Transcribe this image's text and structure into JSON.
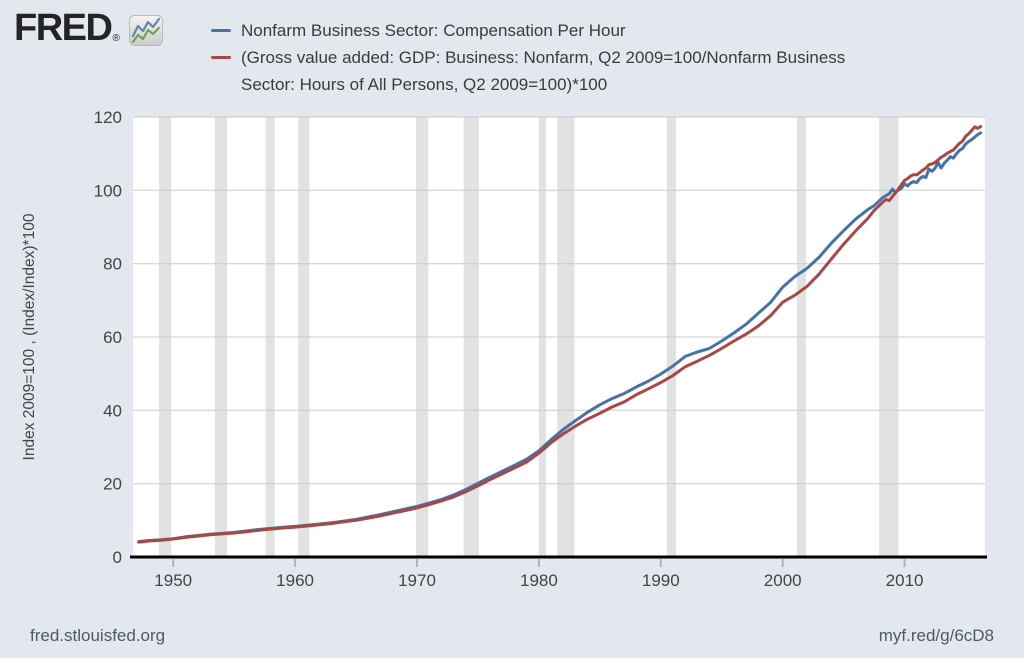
{
  "logo": {
    "text": "FRED",
    "registered": "®",
    "icon": "line-chart-icon"
  },
  "legend": {
    "items": [
      {
        "color": "#4572a7",
        "lines": [
          "Nonfarm Business Sector: Compensation Per Hour"
        ]
      },
      {
        "color": "#aa4643",
        "lines": [
          "(Gross value added: GDP: Business: Nonfarm, Q2 2009=100/Nonfarm Business",
          "Sector: Hours of All Persons, Q2 2009=100)*100"
        ]
      }
    ]
  },
  "footer": {
    "left": "fred.stlouisfed.org",
    "right": "myf.red/g/6cD8"
  },
  "colors": {
    "page_bg": "#e2e8ee",
    "plot_bg": "#ffffff",
    "grid": "#cbcbcb",
    "recession_band": "#e2e2e2",
    "axis_line": "#000000",
    "tick_mark": "#a3b8cb",
    "label_text": "#444444",
    "series_blue": "#4572a7",
    "series_red": "#aa4643"
  },
  "chart_data": {
    "type": "line",
    "title": "",
    "xlabel": "",
    "ylabel": "Index 2009=100 , (Index/Index)*100",
    "xlim": [
      1946.7,
      2016.6
    ],
    "ylim": [
      0,
      120
    ],
    "x_ticks": [
      1950,
      1960,
      1970,
      1980,
      1990,
      2000,
      2010
    ],
    "y_ticks": [
      0,
      20,
      40,
      60,
      80,
      100,
      120
    ],
    "grid": "horizontal",
    "legend_position": "top",
    "recession_bands": [
      [
        1948.83,
        1949.83
      ],
      [
        1953.42,
        1954.42
      ],
      [
        1957.58,
        1958.33
      ],
      [
        1960.25,
        1961.17
      ],
      [
        1969.92,
        1970.92
      ],
      [
        1973.83,
        1975.08
      ],
      [
        1980.0,
        1980.58
      ],
      [
        1981.5,
        1982.92
      ],
      [
        1990.5,
        1991.25
      ],
      [
        2001.17,
        2001.92
      ],
      [
        2007.92,
        2009.5
      ]
    ],
    "series": [
      {
        "name": "Nonfarm Business Sector: Compensation Per Hour",
        "color": "#4572a7",
        "points": [
          [
            1947.17,
            4.2
          ],
          [
            1948,
            4.5
          ],
          [
            1949,
            4.7
          ],
          [
            1950,
            5.0
          ],
          [
            1951,
            5.5
          ],
          [
            1952,
            5.85
          ],
          [
            1953,
            6.2
          ],
          [
            1954,
            6.45
          ],
          [
            1955,
            6.7
          ],
          [
            1956,
            7.1
          ],
          [
            1957,
            7.5
          ],
          [
            1958,
            7.8
          ],
          [
            1959,
            8.1
          ],
          [
            1960,
            8.35
          ],
          [
            1961,
            8.65
          ],
          [
            1962,
            9.0
          ],
          [
            1963,
            9.35
          ],
          [
            1964,
            9.8
          ],
          [
            1965,
            10.25
          ],
          [
            1966,
            10.9
          ],
          [
            1967,
            11.55
          ],
          [
            1968,
            12.3
          ],
          [
            1969,
            13.05
          ],
          [
            1970,
            13.8
          ],
          [
            1971,
            14.7
          ],
          [
            1972,
            15.7
          ],
          [
            1973,
            16.9
          ],
          [
            1974,
            18.4
          ],
          [
            1975,
            20.1
          ],
          [
            1976,
            21.8
          ],
          [
            1977,
            23.4
          ],
          [
            1978,
            25.0
          ],
          [
            1979,
            26.7
          ],
          [
            1980,
            29.0
          ],
          [
            1981,
            32.0
          ],
          [
            1982,
            34.8
          ],
          [
            1983,
            37.2
          ],
          [
            1984,
            39.5
          ],
          [
            1985,
            41.5
          ],
          [
            1986,
            43.2
          ],
          [
            1987,
            44.6
          ],
          [
            1988,
            46.4
          ],
          [
            1989,
            48.0
          ],
          [
            1990,
            49.9
          ],
          [
            1991,
            52.1
          ],
          [
            1992,
            54.7
          ],
          [
            1993,
            55.9
          ],
          [
            1994,
            56.9
          ],
          [
            1995,
            58.9
          ],
          [
            1996,
            61.1
          ],
          [
            1997,
            63.5
          ],
          [
            1998,
            66.5
          ],
          [
            1999,
            69.4
          ],
          [
            2000,
            73.6
          ],
          [
            2001,
            76.5
          ],
          [
            2002,
            78.7
          ],
          [
            2003,
            81.8
          ],
          [
            2004,
            85.6
          ],
          [
            2005,
            89.0
          ],
          [
            2006,
            92.2
          ],
          [
            2007,
            94.8
          ],
          [
            2007.5,
            95.8
          ],
          [
            2008,
            97.4
          ],
          [
            2008.25,
            98.1
          ],
          [
            2008.5,
            98.6
          ],
          [
            2008.75,
            99.1
          ],
          [
            2009,
            100.3
          ],
          [
            2009.25,
            99.5
          ],
          [
            2009.5,
            100.1
          ],
          [
            2009.75,
            100.6
          ],
          [
            2010,
            101.8
          ],
          [
            2010.25,
            101.2
          ],
          [
            2010.5,
            102.0
          ],
          [
            2010.75,
            102.4
          ],
          [
            2011,
            102.1
          ],
          [
            2011.25,
            103.2
          ],
          [
            2011.5,
            103.8
          ],
          [
            2011.75,
            103.5
          ],
          [
            2012,
            105.8
          ],
          [
            2012.25,
            105.2
          ],
          [
            2012.5,
            106.0
          ],
          [
            2012.75,
            107.6
          ],
          [
            2013,
            106.1
          ],
          [
            2013.25,
            107.4
          ],
          [
            2013.5,
            108.2
          ],
          [
            2013.75,
            109.2
          ],
          [
            2014,
            108.8
          ],
          [
            2014.25,
            110.0
          ],
          [
            2014.5,
            110.9
          ],
          [
            2014.75,
            111.4
          ],
          [
            2015,
            112.6
          ],
          [
            2015.25,
            113.3
          ],
          [
            2015.5,
            113.8
          ],
          [
            2015.75,
            114.5
          ],
          [
            2016,
            115.2
          ],
          [
            2016.25,
            115.7
          ]
        ]
      },
      {
        "name": "(Gross value added: GDP: Business: Nonfarm, Q2 2009=100/Nonfarm Business Sector: Hours of All Persons, Q2 2009=100)*100",
        "color": "#aa4643",
        "points": [
          [
            1947.17,
            4.05
          ],
          [
            1948,
            4.35
          ],
          [
            1949,
            4.55
          ],
          [
            1950,
            4.9
          ],
          [
            1951,
            5.35
          ],
          [
            1952,
            5.7
          ],
          [
            1953,
            6.05
          ],
          [
            1954,
            6.3
          ],
          [
            1955,
            6.55
          ],
          [
            1956,
            6.9
          ],
          [
            1957,
            7.3
          ],
          [
            1958,
            7.6
          ],
          [
            1959,
            7.9
          ],
          [
            1960,
            8.15
          ],
          [
            1961,
            8.45
          ],
          [
            1962,
            8.8
          ],
          [
            1963,
            9.15
          ],
          [
            1964,
            9.6
          ],
          [
            1965,
            10.0
          ],
          [
            1966,
            10.6
          ],
          [
            1967,
            11.2
          ],
          [
            1968,
            11.95
          ],
          [
            1969,
            12.65
          ],
          [
            1970,
            13.4
          ],
          [
            1971,
            14.3
          ],
          [
            1972,
            15.3
          ],
          [
            1973,
            16.4
          ],
          [
            1974,
            17.8
          ],
          [
            1975,
            19.4
          ],
          [
            1976,
            21.1
          ],
          [
            1977,
            22.7
          ],
          [
            1978,
            24.3
          ],
          [
            1979,
            25.9
          ],
          [
            1980,
            28.3
          ],
          [
            1981,
            31.2
          ],
          [
            1982,
            33.6
          ],
          [
            1983,
            35.7
          ],
          [
            1984,
            37.6
          ],
          [
            1985,
            39.2
          ],
          [
            1986,
            40.9
          ],
          [
            1987,
            42.3
          ],
          [
            1988,
            44.3
          ],
          [
            1989,
            45.9
          ],
          [
            1990,
            47.6
          ],
          [
            1991,
            49.5
          ],
          [
            1992,
            51.9
          ],
          [
            1993,
            53.4
          ],
          [
            1994,
            55.0
          ],
          [
            1995,
            56.9
          ],
          [
            1996,
            58.9
          ],
          [
            1997,
            60.8
          ],
          [
            1998,
            63.0
          ],
          [
            1999,
            65.8
          ],
          [
            2000,
            69.5
          ],
          [
            2001,
            71.4
          ],
          [
            2002,
            73.8
          ],
          [
            2003,
            77.2
          ],
          [
            2004,
            81.3
          ],
          [
            2005,
            85.3
          ],
          [
            2006,
            89.0
          ],
          [
            2007,
            92.4
          ],
          [
            2007.5,
            94.5
          ],
          [
            2008,
            96.1
          ],
          [
            2008.25,
            96.9
          ],
          [
            2008.5,
            97.5
          ],
          [
            2008.75,
            97.2
          ],
          [
            2009,
            98.3
          ],
          [
            2009.25,
            99.3
          ],
          [
            2009.5,
            100.4
          ],
          [
            2009.75,
            101.6
          ],
          [
            2010,
            102.7
          ],
          [
            2010.25,
            103.2
          ],
          [
            2010.5,
            103.9
          ],
          [
            2010.75,
            104.3
          ],
          [
            2011,
            104.2
          ],
          [
            2011.25,
            104.9
          ],
          [
            2011.5,
            105.5
          ],
          [
            2011.75,
            106.1
          ],
          [
            2012,
            107.0
          ],
          [
            2012.25,
            107.2
          ],
          [
            2012.5,
            107.6
          ],
          [
            2012.75,
            108.3
          ],
          [
            2013,
            109.0
          ],
          [
            2013.25,
            109.5
          ],
          [
            2013.5,
            110.1
          ],
          [
            2013.75,
            110.6
          ],
          [
            2014,
            111.0
          ],
          [
            2014.25,
            111.9
          ],
          [
            2014.5,
            112.8
          ],
          [
            2014.75,
            113.4
          ],
          [
            2015,
            114.7
          ],
          [
            2015.25,
            115.4
          ],
          [
            2015.5,
            116.3
          ],
          [
            2015.75,
            117.3
          ],
          [
            2016,
            116.9
          ],
          [
            2016.25,
            117.4
          ]
        ]
      }
    ]
  }
}
